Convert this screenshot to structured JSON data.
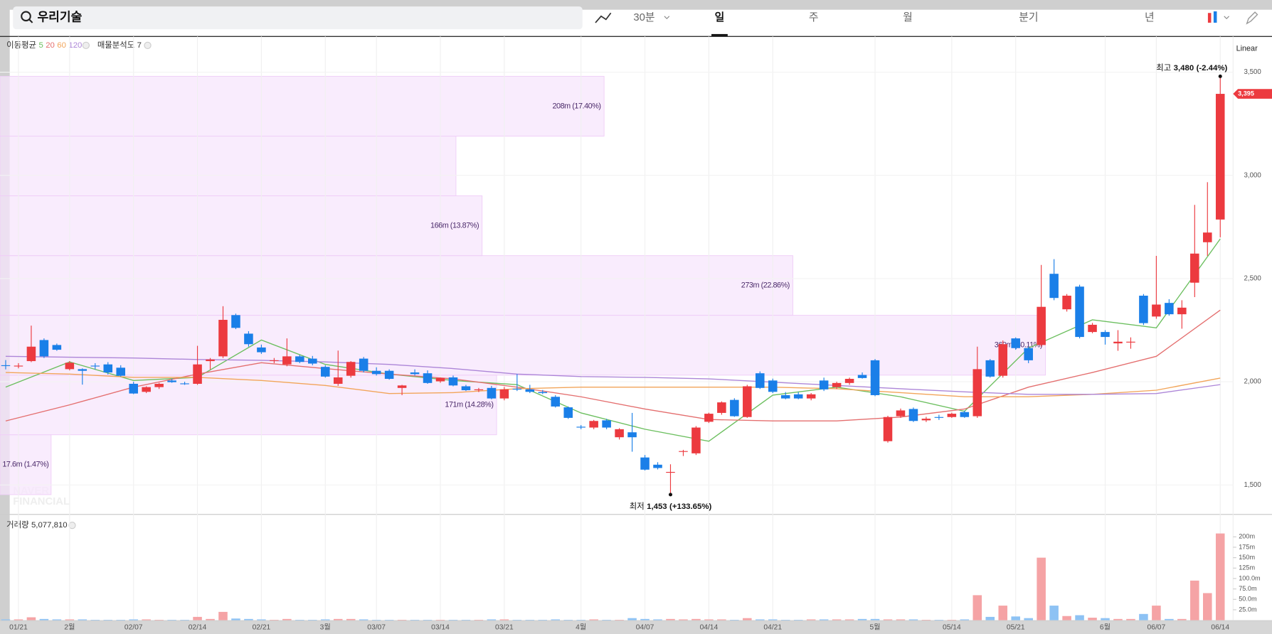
{
  "toolbar": {
    "search": "우리기술",
    "interval": "30분",
    "tabs": [
      "일",
      "주",
      "월",
      "분기",
      "년"
    ],
    "active_tab": 0
  },
  "chart_data": {
    "type": "candlestick",
    "scale_label": "Linear",
    "ma_label": "이동평균",
    "profile_label": "매물분석도",
    "profile_count": 7,
    "categories": [
      null,
      "01/21",
      null,
      null,
      null,
      "2월",
      null,
      null,
      null,
      null,
      "02/07",
      null,
      null,
      null,
      null,
      "02/14",
      null,
      null,
      null,
      null,
      "02/21",
      null,
      null,
      null,
      null,
      "3월",
      null,
      null,
      null,
      "03/07",
      null,
      null,
      null,
      null,
      "03/14",
      null,
      null,
      null,
      null,
      "03/21",
      null,
      null,
      null,
      null,
      null,
      "4월",
      null,
      null,
      null,
      null,
      "04/07",
      null,
      null,
      null,
      null,
      "04/14",
      null,
      null,
      null,
      null,
      "04/21",
      null,
      null,
      null,
      null,
      null,
      null,
      null,
      "5월",
      null,
      null,
      null,
      null,
      null,
      "05/14",
      null,
      null,
      null,
      null,
      "05/21",
      null,
      null,
      null,
      null,
      null,
      null,
      "6월",
      null,
      null,
      null,
      "06/07",
      null,
      null,
      null,
      null,
      "06/14"
    ],
    "open": [
      2080,
      2076,
      2100,
      2202,
      2178,
      2061,
      2061,
      2078,
      2084,
      2068,
      1990,
      1951,
      1974,
      2006,
      1992,
      1990,
      2100,
      2123,
      2323,
      2233,
      2166,
      2102,
      2084,
      2123,
      2112,
      2072,
      1990,
      2029,
      2112,
      2053,
      2053,
      1970,
      2045,
      2041,
      2002,
      2021,
      1978,
      1959,
      1970,
      1919,
      1966,
      1963,
      1950,
      1927,
      1876,
      1782,
      1778,
      1813,
      1731,
      1755,
      1633,
      1598,
      1559,
      1661,
      1653,
      1806,
      1849,
      1912,
      1829,
      2041,
      2006,
      1935,
      1939,
      1919,
      2006,
      1974,
      1994,
      2033,
      2104,
      1712,
      1833,
      1868,
      1813,
      1829,
      1829,
      1853,
      1833,
      2104,
      2029,
      2210,
      2163,
      2178,
      2523,
      2351,
      2461,
      2241,
      2241,
      2186,
      2190,
      2417,
      2316,
      2382,
      2327,
      2480,
      2676,
      2786
    ],
    "high": [
      2105,
      2090,
      2272,
      2210,
      2185,
      2100,
      2065,
      2090,
      2095,
      2080,
      2000,
      1978,
      1995,
      2014,
      2000,
      2174,
      2115,
      2366,
      2330,
      2245,
      2180,
      2115,
      2210,
      2130,
      2125,
      2080,
      2151,
      2100,
      2120,
      2070,
      2060,
      1985,
      2060,
      2055,
      2020,
      2030,
      1985,
      1970,
      1980,
      1975,
      2037,
      1985,
      1960,
      1935,
      1880,
      1790,
      1815,
      1820,
      1775,
      1849,
      1645,
      1610,
      1600,
      1670,
      1785,
      1850,
      1905,
      1920,
      1985,
      2050,
      2015,
      1950,
      1950,
      1945,
      2020,
      2000,
      2020,
      2045,
      2110,
      1835,
      1870,
      1875,
      1830,
      1840,
      1850,
      1860,
      2170,
      2110,
      2200,
      2215,
      2170,
      2566,
      2594,
      2425,
      2470,
      2285,
      2250,
      2250,
      2215,
      2425,
      2610,
      2400,
      2395,
      2857,
      2967,
      3480
    ],
    "low": [
      2060,
      2065,
      2095,
      2115,
      2150,
      2055,
      1986,
      2060,
      2035,
      2025,
      1940,
      1945,
      1965,
      1995,
      1985,
      1985,
      2060,
      2115,
      2255,
      2170,
      2135,
      2090,
      2075,
      2090,
      2080,
      2020,
      1980,
      2020,
      2045,
      2030,
      2010,
      1935,
      2030,
      1990,
      1995,
      1978,
      1955,
      1950,
      1915,
      1910,
      1955,
      1945,
      1940,
      1875,
      1820,
      1770,
      1770,
      1770,
      1720,
      1661,
      1570,
      1575,
      1453,
      1640,
      1645,
      1800,
      1840,
      1830,
      1825,
      1965,
      1945,
      1915,
      1915,
      1910,
      1955,
      1965,
      1985,
      2015,
      1930,
      1705,
      1825,
      1805,
      1805,
      1815,
      1825,
      1825,
      1825,
      2020,
      2020,
      2155,
      2090,
      2170,
      2395,
      2340,
      2210,
      2235,
      2180,
      2150,
      2160,
      2275,
      2305,
      2320,
      2257,
      2410,
      2610,
      2700
    ],
    "close": [
      2076,
      2078,
      2170,
      2123,
      2155,
      2092,
      2053,
      2076,
      2045,
      2029,
      1943,
      1974,
      1990,
      1998,
      1990,
      2084,
      2108,
      2300,
      2261,
      2182,
      2143,
      2104,
      2123,
      2096,
      2088,
      2025,
      2021,
      2096,
      2053,
      2037,
      2014,
      1982,
      2037,
      1994,
      2018,
      1982,
      1959,
      1963,
      1919,
      1963,
      1963,
      1951,
      1945,
      1880,
      1825,
      1778,
      1810,
      1778,
      1770,
      1731,
      1574,
      1582,
      1563,
      1664,
      1778,
      1845,
      1900,
      1833,
      1978,
      1970,
      1951,
      1919,
      1919,
      1939,
      1963,
      1994,
      2014,
      2018,
      1935,
      1829,
      1861,
      1810,
      1821,
      1829,
      1845,
      1829,
      2061,
      2025,
      2182,
      2163,
      2104,
      2363,
      2406,
      2417,
      2217,
      2276,
      2217,
      2194,
      2194,
      2284,
      2374,
      2327,
      2359,
      2621,
      2723,
      3395
    ],
    "up_color": "#ec3a3f",
    "down_color": "#1a7fe8",
    "ylim": [
      1363,
      3673
    ],
    "yticks": [
      {
        "value": 1500,
        "label": "1,500"
      },
      {
        "value": 2000,
        "label": "2,000"
      },
      {
        "value": 2500,
        "label": "2,500"
      },
      {
        "value": 3000,
        "label": "3,000"
      },
      {
        "value": 3500,
        "label": "3,500"
      }
    ],
    "grid": true,
    "moving_averages": [
      {
        "period": 5,
        "color": "#6cbf5f",
        "x": [
          0,
          5,
          10,
          15,
          20,
          25,
          30,
          35,
          40,
          45,
          50,
          55,
          60,
          65,
          70,
          75,
          80,
          85,
          90,
          95
        ],
        "values": [
          1974,
          2096,
          2006,
          2021,
          2202,
          2084,
          2037,
          2006,
          1986,
          1849,
          1770,
          1712,
          1935,
          1974,
          1927,
          1857,
          2163,
          2300,
          2261,
          2692
        ]
      },
      {
        "period": 20,
        "color": "#e46f6f",
        "x": [
          0,
          5,
          10,
          15,
          20,
          25,
          30,
          35,
          40,
          45,
          50,
          55,
          60,
          65,
          70,
          75,
          80,
          85,
          90,
          95
        ],
        "values": [
          1810,
          1888,
          1974,
          2037,
          2092,
          2064,
          2037,
          2014,
          1974,
          1927,
          1868,
          1817,
          1810,
          1810,
          1829,
          1868,
          1974,
          2045,
          2123,
          2347
        ]
      },
      {
        "period": 60,
        "color": "#f2a55a",
        "x": [
          0,
          5,
          10,
          15,
          20,
          25,
          30,
          35,
          40,
          45,
          50,
          55,
          60,
          65,
          70,
          75,
          80,
          85,
          90,
          95
        ],
        "values": [
          2045,
          2037,
          2021,
          2021,
          2006,
          1982,
          1943,
          1947,
          1966,
          1974,
          1974,
          1974,
          1974,
          1966,
          1947,
          1927,
          1927,
          1939,
          1959,
          2018
        ]
      },
      {
        "period": 120,
        "color": "#ad86d8",
        "x": [
          0,
          5,
          10,
          15,
          20,
          25,
          30,
          35,
          40,
          45,
          50,
          55,
          60,
          65,
          70,
          75,
          80,
          85,
          90,
          95
        ],
        "values": [
          2123,
          2119,
          2115,
          2108,
          2104,
          2096,
          2084,
          2064,
          2037,
          2025,
          2021,
          2014,
          1998,
          1982,
          1966,
          1951,
          1939,
          1939,
          1943,
          1986
        ]
      }
    ],
    "profile": {
      "bins": [
        1453,
        1743,
        2032,
        2322,
        2611,
        2901,
        3190,
        3480
      ],
      "values": [
        17.6,
        171,
        360,
        273,
        166,
        157,
        208
      ],
      "value_labels": [
        "17.6m (1.47%)",
        "171m (14.28%)",
        "360m (30.11%)",
        "273m (22.86%)",
        "166m (13.87%)",
        null,
        "208m (17.40%)"
      ],
      "color": "#f7e6fc"
    },
    "high_note": {
      "label": "최고",
      "value": 3480,
      "value_label": "3,480",
      "change": "(-2.44%)"
    },
    "low_note": {
      "label": "최저",
      "value": 1453,
      "value_label": "1,453",
      "change": "(+133.65%)"
    },
    "last_price": {
      "value": 3395,
      "label": "3,395"
    },
    "watermark": [
      "NAVER",
      "FINANCIAL"
    ],
    "volume": {
      "title": "거래량",
      "total": "5,077,810",
      "values": [
        2,
        2,
        7,
        3,
        2,
        2,
        2,
        1,
        1,
        1,
        2,
        2,
        1,
        1,
        1,
        8,
        3,
        20,
        4,
        3,
        2,
        1,
        3,
        1,
        1,
        2,
        3,
        3,
        2,
        1,
        1,
        1,
        1,
        1,
        1,
        1,
        1,
        1,
        2,
        2,
        1,
        1,
        1,
        2,
        1,
        1,
        2,
        1,
        1,
        5,
        3,
        2,
        3,
        2,
        3,
        2,
        2,
        1,
        5,
        2,
        2,
        1,
        1,
        2,
        2,
        2,
        2,
        3,
        3,
        2,
        2,
        2,
        1,
        1,
        1,
        2,
        60,
        8,
        35,
        9,
        5,
        150,
        35,
        10,
        12,
        6,
        5,
        3,
        3,
        15,
        35,
        3,
        3,
        95,
        65,
        208
      ],
      "ylim": [
        0,
        243
      ],
      "yticks": [
        {
          "value": 25,
          "label": "25.0m"
        },
        {
          "value": 50,
          "label": "50.0m"
        },
        {
          "value": 75,
          "label": "75.0m"
        },
        {
          "value": 100,
          "label": "100.0m"
        },
        {
          "value": 125,
          "label": "125m"
        },
        {
          "value": 150,
          "label": "150m"
        },
        {
          "value": 175,
          "label": "175m"
        },
        {
          "value": 200,
          "label": "200m"
        }
      ],
      "up_color": "#f5a3a5",
      "down_color": "#8dc2f4"
    }
  }
}
